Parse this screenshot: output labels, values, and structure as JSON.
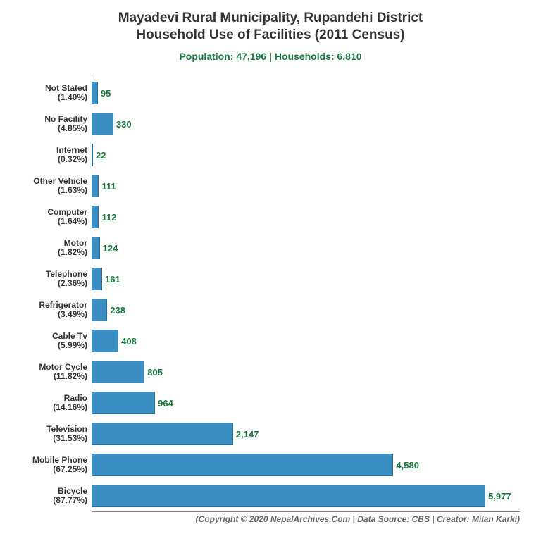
{
  "chart": {
    "type": "bar-horizontal",
    "title_line1": "Mayadevi Rural Municipality, Rupandehi District",
    "title_line2": "Household Use of Facilities (2011 Census)",
    "title_fontsize": 19,
    "title_color": "#333333",
    "subtitle": "Population: 47,196 | Households: 6,810",
    "subtitle_fontsize": 14,
    "subtitle_color": "#1a7a3e",
    "background_color": "#ffffff",
    "bar_color": "#3a8ec2",
    "bar_border_color": "#2f6b91",
    "value_label_color": "#1a7a3e",
    "value_label_fontsize": 13,
    "ylabel_color": "#333333",
    "ylabel_fontsize": 12,
    "axis_color": "#888888",
    "x_max": 6500,
    "footer": "(Copyright © 2020 NepalArchives.Com | Data Source: CBS | Creator: Milan Karki)",
    "footer_color": "#666666",
    "footer_fontsize": 12,
    "categories": [
      {
        "name": "Not Stated",
        "pct": "1.40%",
        "value": 95,
        "value_fmt": "95"
      },
      {
        "name": "No Facility",
        "pct": "4.85%",
        "value": 330,
        "value_fmt": "330"
      },
      {
        "name": "Internet",
        "pct": "0.32%",
        "value": 22,
        "value_fmt": "22"
      },
      {
        "name": "Other Vehicle",
        "pct": "1.63%",
        "value": 111,
        "value_fmt": "111"
      },
      {
        "name": "Computer",
        "pct": "1.64%",
        "value": 112,
        "value_fmt": "112"
      },
      {
        "name": "Motor",
        "pct": "1.82%",
        "value": 124,
        "value_fmt": "124"
      },
      {
        "name": "Telephone",
        "pct": "2.36%",
        "value": 161,
        "value_fmt": "161"
      },
      {
        "name": "Refrigerator",
        "pct": "3.49%",
        "value": 238,
        "value_fmt": "238"
      },
      {
        "name": "Cable Tv",
        "pct": "5.99%",
        "value": 408,
        "value_fmt": "408"
      },
      {
        "name": "Motor Cycle",
        "pct": "11.82%",
        "value": 805,
        "value_fmt": "805"
      },
      {
        "name": "Radio",
        "pct": "14.16%",
        "value": 964,
        "value_fmt": "964"
      },
      {
        "name": "Television",
        "pct": "31.53%",
        "value": 2147,
        "value_fmt": "2,147"
      },
      {
        "name": "Mobile Phone",
        "pct": "67.25%",
        "value": 4580,
        "value_fmt": "4,580"
      },
      {
        "name": "Bicycle",
        "pct": "87.77%",
        "value": 5977,
        "value_fmt": "5,977"
      }
    ]
  }
}
